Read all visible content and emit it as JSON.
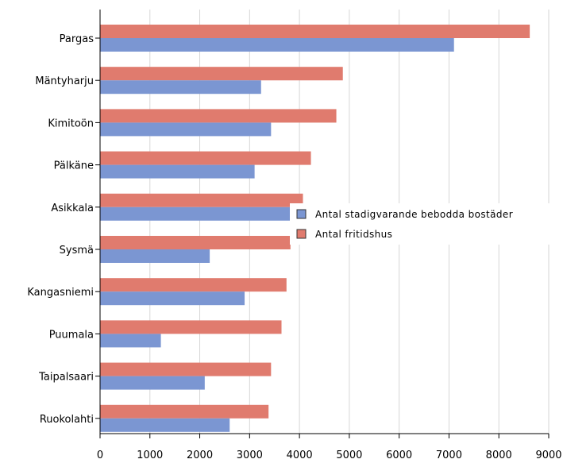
{
  "chart_data": {
    "type": "bar",
    "orientation": "horizontal",
    "categories": [
      "Pargas",
      "Mäntyharju",
      "Kimitoön",
      "Pälkäne",
      "Asikkala",
      "Sysmä",
      "Kangasniemi",
      "Puumala",
      "Taipalsaari",
      "Ruokolahti"
    ],
    "series": [
      {
        "name": "Antal fritidshus",
        "color": "#e07b6e",
        "values": [
          8620,
          4870,
          4740,
          4230,
          4070,
          3820,
          3740,
          3640,
          3430,
          3380
        ]
      },
      {
        "name": "Antal stadigvarande bebodda bostäder",
        "color": "#7b96d2",
        "values": [
          7100,
          3230,
          3430,
          3100,
          3880,
          2200,
          2900,
          1220,
          2100,
          2600
        ]
      }
    ],
    "xlim": [
      0,
      9000
    ],
    "xticks": [
      "0",
      "1000",
      "2000",
      "3000",
      "4000",
      "5000",
      "6000",
      "7000",
      "8000",
      "9000"
    ],
    "grid": "vertical",
    "legend": {
      "position": "center-right",
      "entries": [
        "Antal stadigvarande bebodda bostäder",
        "Antal fritidshus"
      ]
    },
    "title": "",
    "xlabel": "",
    "ylabel": ""
  }
}
